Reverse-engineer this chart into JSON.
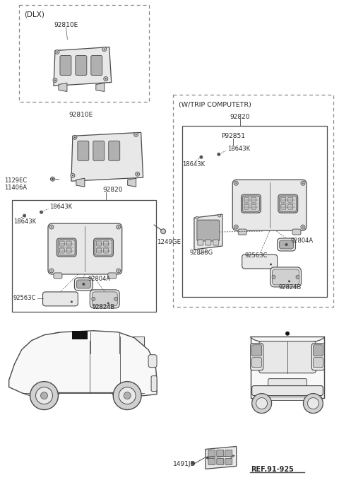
{
  "bg_color": "#ffffff",
  "lc": "#4a4a4a",
  "tc": "#2a2a2a",
  "fig_width": 4.8,
  "fig_height": 7.03,
  "dpi": 100,
  "labels": {
    "dlx": "(DLX)",
    "wtrip": "(W/TRIP COMPUTETR)",
    "p92851": "P92851",
    "92810E": "92810E",
    "92820_l": "92820",
    "92820_r": "92820",
    "1129EC": "1129EC",
    "11406A": "11406A",
    "18643K": "18643K",
    "92804A": "92804A",
    "92563C": "92563C",
    "92824B": "92824B",
    "92888G": "92888G",
    "1249GE": "1249GE",
    "1491JD": "1491JD",
    "ref": "REF.91-925"
  }
}
